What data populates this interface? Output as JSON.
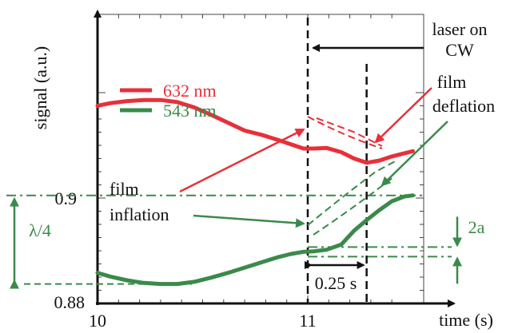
{
  "chart_data": {
    "type": "line",
    "title": "",
    "xlabel": "time (s)",
    "ylabel": "signal (a.u.)",
    "xlim": [
      10,
      11.5
    ],
    "ylim": [
      0.88,
      0.92
    ],
    "xticks": [
      {
        "value": 10,
        "label": "10"
      },
      {
        "value": 11,
        "label": "11"
      }
    ],
    "yticks": [
      {
        "value": 0.9,
        "label": "0.9"
      },
      {
        "value": 0.88,
        "label": "0.88"
      }
    ],
    "grid": false,
    "legend": "upper-left inside",
    "series": [
      {
        "name": "632 nm",
        "color": "#e8303a",
        "x": [
          10.0,
          10.06,
          10.14,
          10.22,
          10.3,
          10.38,
          10.46,
          10.54,
          10.62,
          10.7,
          10.78,
          10.86,
          10.92,
          10.98,
          11.03,
          11.09,
          11.16,
          11.22,
          11.28,
          11.34,
          11.4,
          11.46,
          11.5
        ],
        "y": [
          0.9175,
          0.918,
          0.9184,
          0.9186,
          0.9186,
          0.9182,
          0.9172,
          0.9158,
          0.9143,
          0.9128,
          0.912,
          0.911,
          0.9102,
          0.9094,
          0.9094,
          0.9095,
          0.9087,
          0.9075,
          0.9067,
          0.9071,
          0.9079,
          0.9085,
          0.9089
        ]
      },
      {
        "name": "543 nm",
        "color": "#3a8a4a",
        "x": [
          10.0,
          10.06,
          10.14,
          10.22,
          10.3,
          10.38,
          10.46,
          10.54,
          10.62,
          10.7,
          10.78,
          10.86,
          10.92,
          10.98,
          11.03,
          11.09,
          11.16,
          11.22,
          11.28,
          11.34,
          11.4,
          11.46,
          11.5
        ],
        "y": [
          0.8858,
          0.8851,
          0.8844,
          0.8839,
          0.8837,
          0.8837,
          0.8841,
          0.8849,
          0.8858,
          0.8868,
          0.8878,
          0.8888,
          0.8894,
          0.8898,
          0.8899,
          0.8902,
          0.8912,
          0.8938,
          0.8958,
          0.8977,
          0.8994,
          0.9003,
          0.9005
        ]
      }
    ],
    "annotations": {
      "laser_on": "laser on",
      "cw": "CW",
      "film_deflation_1": "film",
      "film_deflation_2": "deflation",
      "film_inflation_1": "film",
      "film_inflation_2": "inflation",
      "lambda_quarter": "λ/4",
      "two_a": "2a",
      "duration": "0.25 s"
    },
    "markers": {
      "laser_on_time": 11.0,
      "end_time": 11.28,
      "lambda_top": 0.9005,
      "lambda_bottom": 0.8837,
      "two_a_top": 0.8904,
      "two_a_bottom": 0.8898
    }
  }
}
